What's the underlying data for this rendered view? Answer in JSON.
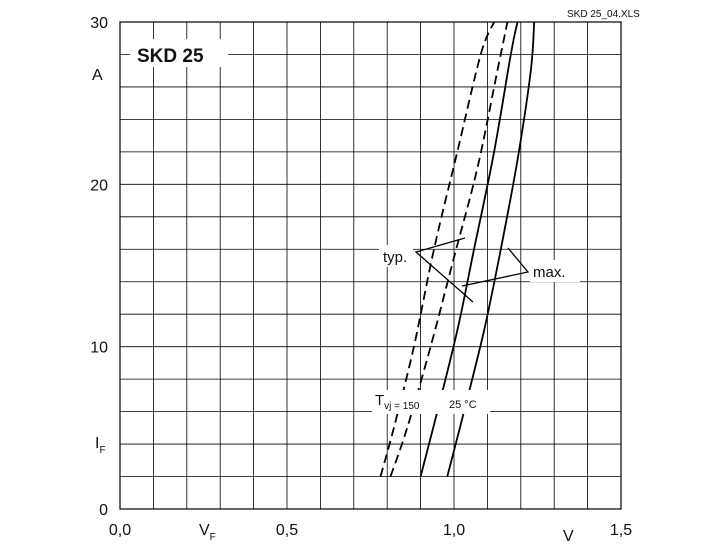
{
  "chart_data": {
    "type": "line",
    "title": "SKD 25",
    "file_label": "SKD 25_04.XLS",
    "xlabel": "V_F",
    "xunit": "V",
    "ylabel": "I_F",
    "yunit": "A",
    "xlim": [
      0,
      1.5
    ],
    "ylim": [
      0,
      30
    ],
    "x_ticks": [
      {
        "value": 0,
        "label": "0,0"
      },
      {
        "value": 0.5,
        "label": "0,5"
      },
      {
        "value": 1.0,
        "label": "1,0"
      },
      {
        "value": 1.5,
        "label": "1,5"
      }
    ],
    "y_ticks": [
      {
        "value": 0,
        "label": "0"
      },
      {
        "value": 10,
        "label": "10"
      },
      {
        "value": 20,
        "label": "20"
      },
      {
        "value": 30,
        "label": "30"
      }
    ],
    "grid": true,
    "annotations": {
      "typ": "typ.",
      "max": "max.",
      "tvj_main": "T",
      "tvj_sub": "vj = 150",
      "temp_25": "25 °C",
      "xlabel_main": "V",
      "xlabel_sub": "F",
      "ylabel_main": "I",
      "ylabel_sub": "F"
    },
    "series": [
      {
        "style": "dashed",
        "x": [
          0.78,
          0.82,
          0.88,
          0.94,
          1.01,
          1.08,
          1.12
        ],
        "y": [
          2,
          5,
          10,
          16,
          22,
          28,
          30
        ]
      },
      {
        "style": "dashed",
        "x": [
          0.81,
          0.86,
          0.93,
          1.0,
          1.07,
          1.13,
          1.16
        ],
        "y": [
          2,
          5,
          10,
          15.5,
          21,
          27,
          30
        ]
      },
      {
        "style": "solid",
        "x": [
          0.9,
          0.95,
          1.01,
          1.06,
          1.12,
          1.17,
          1.19
        ],
        "y": [
          2,
          6,
          11,
          16,
          22,
          28,
          30
        ]
      },
      {
        "style": "solid",
        "x": [
          0.98,
          1.03,
          1.09,
          1.14,
          1.19,
          1.23,
          1.24
        ],
        "y": [
          2,
          6,
          11,
          16,
          21.5,
          27,
          30
        ]
      }
    ]
  }
}
